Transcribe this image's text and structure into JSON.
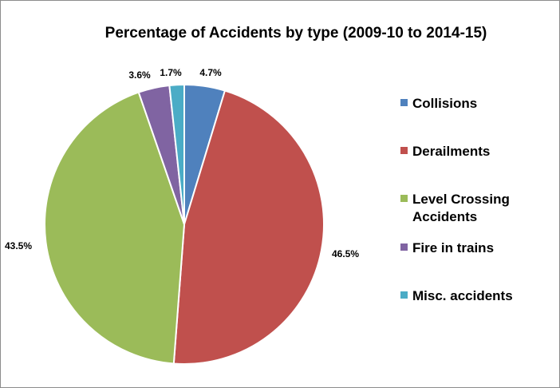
{
  "chart_data": {
    "type": "pie",
    "title": "Percentage of Accidents by type (2009-10 to 2014-15)",
    "categories": [
      "Collisions",
      "Derailments",
      "Level Crossing Accidents",
      "Fire in trains",
      "Misc. accidents"
    ],
    "values": [
      4.7,
      46.5,
      43.5,
      3.6,
      1.7
    ],
    "data_labels": [
      "4.7%",
      "46.5%",
      "43.5%",
      "3.6%",
      "1.7%"
    ],
    "colors": [
      "#4f81bd",
      "#c0504d",
      "#9bbb59",
      "#8064a2",
      "#4bacc6"
    ],
    "start_angle": "12 o'clock",
    "direction": "clockwise",
    "legend": "right"
  }
}
